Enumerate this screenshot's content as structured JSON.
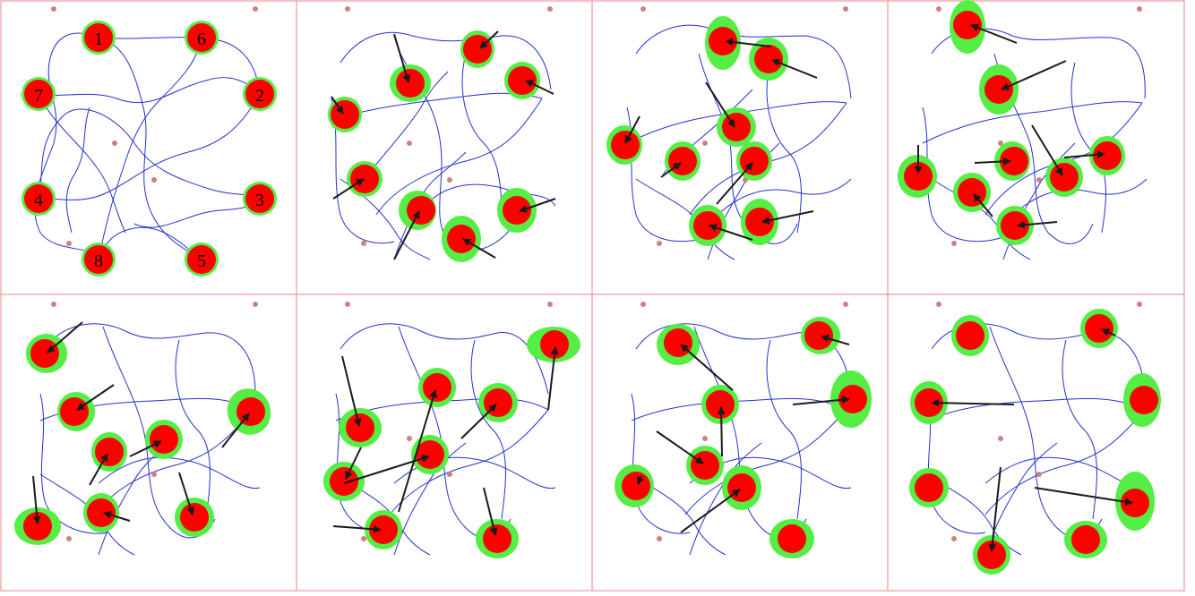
{
  "colors": {
    "panel_border": "#f08080",
    "path": "#2233cc",
    "uncertainty": "#55ee44",
    "robot": "#ff0000",
    "arrow": "#1a1a1a",
    "landmark": "#d08080"
  },
  "robot_labels": [
    "1",
    "2",
    "3",
    "4",
    "5",
    "6",
    "7",
    "8"
  ]
}
